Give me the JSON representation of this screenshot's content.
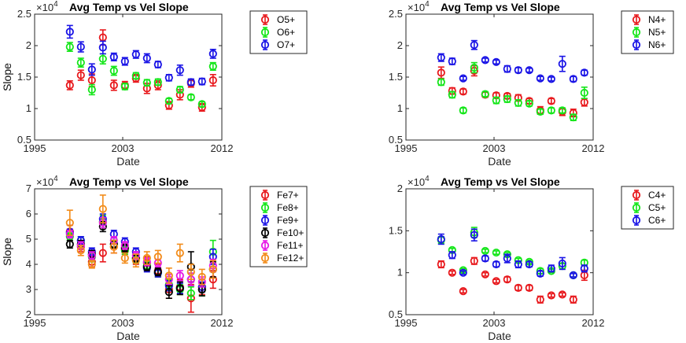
{
  "chart_data": [
    {
      "type": "scatter",
      "title": "Avg Temp vs Vel Slope",
      "xlabel": "Date",
      "ylabel": "Slope",
      "exponent_prefix": "×10",
      "exponent_power": "4",
      "xlim": [
        1995,
        2012
      ],
      "ylim": [
        0.5,
        2.5
      ],
      "xticks": [
        1995,
        2003,
        2012
      ],
      "yticks": [
        0.5,
        1,
        1.5,
        2,
        2.5
      ],
      "ytick_labels": [
        "0.5",
        "1",
        "1.5",
        "2",
        "2.5"
      ],
      "series": [
        {
          "name": "O5+",
          "color": "#e8191d",
          "x": [
            1998.2,
            1999.2,
            2000.2,
            2001.2,
            2002.2,
            2003.2,
            2004.2,
            2005.2,
            2006.2,
            2007.2,
            2008.2,
            2009.2,
            2010.2,
            2011.2
          ],
          "y": [
            1.37,
            1.53,
            1.45,
            2.13,
            1.37,
            1.37,
            1.48,
            1.32,
            1.37,
            1.05,
            1.22,
            1.4,
            1.02,
            1.45
          ],
          "err": [
            0.07,
            0.08,
            0.1,
            0.12,
            0.08,
            0.06,
            0.06,
            0.08,
            0.07,
            0.06,
            0.08,
            0.06,
            0.06,
            0.09
          ]
        },
        {
          "name": "O6+",
          "color": "#14e619",
          "x": [
            1998.2,
            1999.2,
            2000.2,
            2001.2,
            2002.2,
            2003.2,
            2004.2,
            2005.2,
            2006.2,
            2007.2,
            2008.2,
            2009.2,
            2010.2,
            2011.2
          ],
          "y": [
            1.98,
            1.73,
            1.3,
            1.79,
            1.6,
            1.35,
            1.52,
            1.41,
            1.42,
            1.12,
            1.3,
            1.18,
            1.07,
            1.67
          ],
          "err": [
            0.07,
            0.07,
            0.08,
            0.08,
            0.07,
            0.05,
            0.05,
            0.05,
            0.05,
            0.04,
            0.05,
            0.04,
            0.04,
            0.06
          ]
        },
        {
          "name": "O7+",
          "color": "#1a14e6",
          "x": [
            1998.2,
            1999.2,
            2000.2,
            2001.2,
            2002.2,
            2003.2,
            2004.2,
            2005.2,
            2006.2,
            2007.2,
            2008.2,
            2009.2,
            2010.2,
            2011.2
          ],
          "y": [
            2.22,
            1.98,
            1.62,
            1.97,
            1.82,
            1.75,
            1.86,
            1.8,
            1.7,
            1.49,
            1.61,
            1.42,
            1.43,
            1.87
          ],
          "err": [
            0.1,
            0.08,
            0.09,
            0.1,
            0.06,
            0.06,
            0.06,
            0.07,
            0.05,
            0.05,
            0.08,
            0.05,
            0.05,
            0.07
          ]
        }
      ],
      "legend": "top-right"
    },
    {
      "type": "scatter",
      "title": "Avg Temp vs Vel Slope",
      "xlabel": "Date",
      "ylabel": "Slope",
      "exponent_prefix": "×10",
      "exponent_power": "4",
      "xlim": [
        1995,
        2012
      ],
      "ylim": [
        0.5,
        2.5
      ],
      "xticks": [
        1995,
        2003,
        2012
      ],
      "yticks": [
        0.5,
        1,
        1.5,
        2,
        2.5
      ],
      "ytick_labels": [
        "0.5",
        "1",
        "1.5",
        "2",
        "2.5"
      ],
      "series": [
        {
          "name": "N4+",
          "color": "#e8191d",
          "x": [
            1998.2,
            1999.2,
            2000.2,
            2001.2,
            2002.2,
            2003.2,
            2004.2,
            2005.2,
            2006.2,
            2007.2,
            2008.2,
            2009.2,
            2010.2,
            2011.2
          ],
          "y": [
            1.57,
            1.28,
            1.27,
            1.6,
            1.22,
            1.21,
            1.2,
            1.17,
            1.12,
            0.97,
            1.12,
            0.95,
            0.93,
            1.1
          ],
          "err": [
            0.09,
            0.05,
            0.04,
            0.08,
            0.04,
            0.04,
            0.04,
            0.05,
            0.04,
            0.06,
            0.04,
            0.06,
            0.06,
            0.06
          ]
        },
        {
          "name": "N5+",
          "color": "#14e619",
          "x": [
            1998.2,
            1999.2,
            2000.2,
            2001.2,
            2002.2,
            2003.2,
            2004.2,
            2005.2,
            2006.2,
            2007.2,
            2008.2,
            2009.2,
            2010.2,
            2011.2
          ],
          "y": [
            1.42,
            1.22,
            0.97,
            1.65,
            1.23,
            1.13,
            1.15,
            1.09,
            1.08,
            0.95,
            0.97,
            0.97,
            0.86,
            1.25
          ],
          "err": [
            0.05,
            0.05,
            0.04,
            0.08,
            0.04,
            0.05,
            0.05,
            0.05,
            0.04,
            0.04,
            0.04,
            0.04,
            0.05,
            0.09
          ]
        },
        {
          "name": "N6+",
          "color": "#1a14e6",
          "x": [
            1998.2,
            1999.2,
            2000.2,
            2001.2,
            2002.2,
            2003.2,
            2004.2,
            2005.2,
            2006.2,
            2007.2,
            2008.2,
            2009.2,
            2010.2,
            2011.2
          ],
          "y": [
            1.81,
            1.75,
            1.48,
            2.01,
            1.77,
            1.74,
            1.63,
            1.61,
            1.61,
            1.48,
            1.47,
            1.71,
            1.47,
            1.57
          ],
          "err": [
            0.06,
            0.05,
            0.03,
            0.07,
            0.03,
            0.03,
            0.05,
            0.04,
            0.03,
            0.03,
            0.03,
            0.12,
            0.04,
            0.04
          ]
        }
      ],
      "legend": "top-right"
    },
    {
      "type": "scatter",
      "title": "Avg Temp vs Vel Slope",
      "xlabel": "Date",
      "ylabel": "Slope",
      "exponent_prefix": "×10",
      "exponent_power": "4",
      "xlim": [
        1995,
        2012
      ],
      "ylim": [
        2,
        7
      ],
      "xticks": [
        1995,
        2003,
        2012
      ],
      "yticks": [
        2,
        3,
        4,
        5,
        6,
        7
      ],
      "ytick_labels": [
        "2",
        "3",
        "4",
        "5",
        "6",
        "7"
      ],
      "series": [
        {
          "name": "Fe7+",
          "color": "#e8191d",
          "x": [
            1998.2,
            1999.2,
            2000.2,
            2001.2,
            2002.2,
            2003.2,
            2004.2,
            2005.2,
            2006.2,
            2007.2,
            2008.2,
            2009.2,
            2010.2,
            2011.2
          ],
          "y": [
            5.3,
            4.7,
            4.1,
            4.45,
            4.7,
            4.6,
            4.25,
            4.05,
            3.75,
            3.0,
            3.1,
            2.65,
            3.1,
            3.4
          ],
          "err": [
            0.25,
            0.2,
            0.2,
            0.35,
            0.25,
            0.2,
            0.25,
            0.25,
            0.25,
            0.35,
            0.3,
            0.55,
            0.3,
            0.35
          ]
        },
        {
          "name": "Fe8+",
          "color": "#14e619",
          "x": [
            1998.2,
            1999.2,
            2000.2,
            2001.2,
            2002.2,
            2003.2,
            2004.2,
            2005.2,
            2006.2,
            2007.2,
            2008.2,
            2009.2,
            2010.2,
            2011.2
          ],
          "y": [
            5.1,
            4.95,
            4.3,
            5.7,
            4.8,
            4.55,
            4.2,
            3.95,
            3.65,
            3.2,
            3.0,
            2.85,
            3.0,
            4.5
          ],
          "err": [
            0.15,
            0.15,
            0.2,
            0.25,
            0.15,
            0.15,
            0.15,
            0.15,
            0.15,
            0.2,
            0.2,
            0.25,
            0.25,
            0.45
          ]
        },
        {
          "name": "Fe9+",
          "color": "#1a14e6",
          "x": [
            1998.2,
            1999.2,
            2000.2,
            2001.2,
            2002.2,
            2003.2,
            2004.2,
            2005.2,
            2006.2,
            2007.2,
            2008.2,
            2009.2,
            2010.2,
            2011.2
          ],
          "y": [
            5.25,
            4.95,
            4.5,
            5.8,
            5.2,
            4.9,
            4.5,
            3.85,
            3.65,
            3.15,
            3.05,
            3.4,
            3.1,
            4.3
          ],
          "err": [
            0.15,
            0.15,
            0.15,
            0.2,
            0.15,
            0.15,
            0.15,
            0.15,
            0.15,
            0.2,
            0.2,
            0.25,
            0.2,
            0.3
          ]
        },
        {
          "name": "Fe10+",
          "color": "#000000",
          "x": [
            1998.2,
            1999.2,
            2000.2,
            2001.2,
            2002.2,
            2003.2,
            2004.2,
            2005.2,
            2006.2,
            2007.2,
            2008.2,
            2009.2,
            2010.2,
            2011.2
          ],
          "y": [
            4.8,
            4.8,
            4.4,
            5.5,
            4.8,
            4.65,
            4.25,
            3.9,
            3.7,
            2.9,
            3.05,
            3.9,
            3.0,
            3.8
          ],
          "err": [
            0.15,
            0.15,
            0.15,
            0.2,
            0.15,
            0.15,
            0.15,
            0.15,
            0.15,
            0.25,
            0.25,
            0.6,
            0.25,
            0.3
          ]
        },
        {
          "name": "Fe11+",
          "color": "#e619e6",
          "x": [
            1998.2,
            1999.2,
            2000.2,
            2001.2,
            2002.2,
            2003.2,
            2004.2,
            2005.2,
            2006.2,
            2007.2,
            2008.2,
            2009.2,
            2010.2,
            2011.2
          ],
          "y": [
            5.2,
            4.75,
            4.35,
            5.65,
            4.95,
            4.75,
            4.35,
            4.1,
            4.05,
            3.4,
            3.55,
            3.4,
            3.3,
            3.95
          ],
          "err": [
            0.15,
            0.15,
            0.15,
            0.2,
            0.15,
            0.15,
            0.15,
            0.15,
            0.15,
            0.2,
            0.2,
            0.25,
            0.2,
            0.25
          ]
        },
        {
          "name": "Fe12+",
          "color": "#f28c1a",
          "x": [
            1998.2,
            1999.2,
            2000.2,
            2001.2,
            2002.2,
            2003.2,
            2004.2,
            2005.2,
            2006.2,
            2007.2,
            2008.2,
            2009.2,
            2010.2,
            2011.2
          ],
          "y": [
            5.65,
            4.55,
            4.0,
            6.2,
            4.7,
            4.25,
            4.15,
            4.25,
            4.3,
            3.55,
            4.45,
            3.7,
            3.5,
            3.8
          ],
          "err": [
            0.5,
            0.2,
            0.15,
            0.55,
            0.25,
            0.2,
            0.25,
            0.25,
            0.25,
            0.3,
            0.35,
            0.3,
            0.3,
            0.35
          ]
        }
      ],
      "legend": "top-right"
    },
    {
      "type": "scatter",
      "title": "Avg Temp vs Vel Slope",
      "xlabel": "Date",
      "ylabel": "Slope",
      "exponent_prefix": "×10",
      "exponent_power": "4",
      "xlim": [
        1995,
        2012
      ],
      "ylim": [
        0.5,
        2
      ],
      "xticks": [
        1995,
        2003,
        2012
      ],
      "yticks": [
        0.5,
        1,
        1.5,
        2
      ],
      "ytick_labels": [
        "0.5",
        "1",
        "1.5",
        "2"
      ],
      "series": [
        {
          "name": "C4+",
          "color": "#e8191d",
          "x": [
            1998.2,
            1999.2,
            2000.2,
            2001.2,
            2002.2,
            2003.2,
            2004.2,
            2005.2,
            2006.2,
            2007.2,
            2008.2,
            2009.2,
            2010.2,
            2011.2
          ],
          "y": [
            1.1,
            1.0,
            0.78,
            1.14,
            0.98,
            0.9,
            0.92,
            0.82,
            0.82,
            0.68,
            0.73,
            0.74,
            0.68,
            0.97
          ],
          "err": [
            0.04,
            0.02,
            0.02,
            0.04,
            0.02,
            0.02,
            0.03,
            0.03,
            0.03,
            0.04,
            0.02,
            0.02,
            0.04,
            0.06
          ]
        },
        {
          "name": "C5+",
          "color": "#14e619",
          "x": [
            1998.2,
            1999.2,
            2000.2,
            2001.2,
            2002.2,
            2003.2,
            2004.2,
            2005.2,
            2006.2,
            2007.2,
            2008.2,
            2009.2,
            2010.2,
            2011.2
          ],
          "y": [
            1.39,
            1.27,
            1.03,
            1.48,
            1.26,
            1.24,
            1.22,
            1.15,
            1.13,
            1.02,
            1.02,
            1.08,
            0.97,
            1.12
          ],
          "err": [
            0.04,
            0.02,
            0.02,
            0.06,
            0.02,
            0.02,
            0.02,
            0.02,
            0.02,
            0.03,
            0.02,
            0.03,
            0.02,
            0.03
          ]
        },
        {
          "name": "C6+",
          "color": "#1a14e6",
          "x": [
            1998.2,
            1999.2,
            2000.2,
            2001.2,
            2002.2,
            2003.2,
            2004.2,
            2005.2,
            2006.2,
            2007.2,
            2008.2,
            2009.2,
            2010.2,
            2011.2
          ],
          "y": [
            1.4,
            1.21,
            1.0,
            1.45,
            1.17,
            1.1,
            1.17,
            1.1,
            1.1,
            0.99,
            1.05,
            1.11,
            0.97,
            1.05
          ],
          "err": [
            0.06,
            0.04,
            0.02,
            0.07,
            0.03,
            0.03,
            0.05,
            0.04,
            0.03,
            0.03,
            0.04,
            0.07,
            0.02,
            0.04
          ]
        }
      ],
      "legend": "top-right"
    }
  ]
}
